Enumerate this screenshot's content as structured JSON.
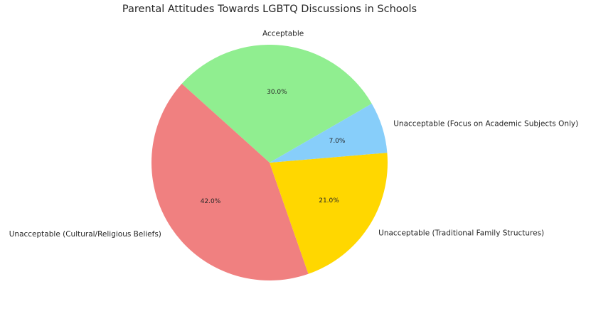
{
  "chart_data": {
    "type": "pie",
    "title": "Parental Attitudes Towards LGBTQ Discussions in Schools",
    "categories": [
      "Acceptable",
      "Unacceptable (Cultural/Religious Beliefs)",
      "Unacceptable (Traditional Family Structures)",
      "Unacceptable (Focus on Academic Subjects Only)"
    ],
    "values": [
      30.0,
      42.0,
      21.0,
      7.0
    ],
    "percent_labels": [
      "30.0%",
      "42.0%",
      "21.0%",
      "7.0%"
    ],
    "colors": [
      "#90ee90",
      "#f08080",
      "#ffd700",
      "#87cefa"
    ],
    "start_angle_deg": 30,
    "direction": "counterclockwise"
  }
}
